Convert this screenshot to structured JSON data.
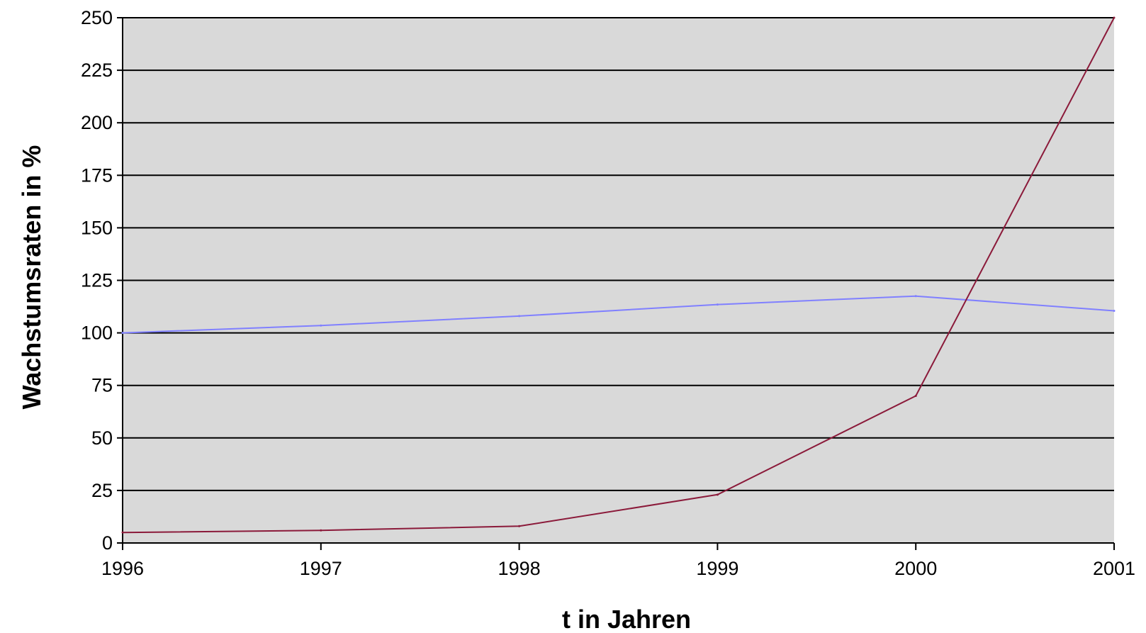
{
  "chart_data": {
    "type": "line",
    "title": "",
    "xlabel": "t in Jahren",
    "ylabel": "Wachstumsraten in %",
    "xlim": [
      1996,
      2001
    ],
    "ylim": [
      0,
      250
    ],
    "x_ticks": [
      "1996",
      "1997",
      "1998",
      "1999",
      "2000",
      "2001"
    ],
    "y_ticks": [
      "0",
      "25",
      "50",
      "75",
      "100",
      "125",
      "150",
      "175",
      "200",
      "225",
      "250"
    ],
    "grid": "horizontal",
    "legend": "none",
    "plot_background": "#d9d9d9",
    "series": [
      {
        "color": "#8080ff",
        "x": [
          1996,
          1997,
          1998,
          1999,
          2000,
          2001
        ],
        "values": [
          100,
          103.5,
          108,
          113.5,
          117.5,
          110.5
        ]
      },
      {
        "color": "#8b1a3a",
        "x": [
          1996,
          1997,
          1998,
          1999,
          2000,
          2001
        ],
        "values": [
          5,
          6,
          8,
          23,
          70,
          250
        ]
      }
    ]
  }
}
